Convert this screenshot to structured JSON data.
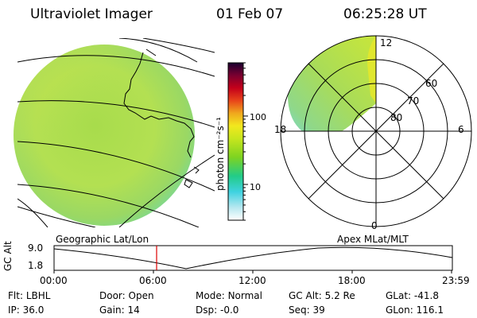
{
  "header": {
    "title": "Ultraviolet Imager",
    "date": "01 Feb 07",
    "time": "06:25:28 UT"
  },
  "colorbar": {
    "unit_label": "photon cm⁻²s⁻¹",
    "ticks": [
      {
        "value": 100,
        "label": "100"
      },
      {
        "value": 10,
        "label": "10"
      }
    ],
    "range": [
      3,
      600
    ],
    "scale": "log",
    "colors": [
      "#ffffff",
      "#b8e8f0",
      "#3fd2e0",
      "#22cc88",
      "#7ed321",
      "#c8e61e",
      "#f2e81e",
      "#f0a71d",
      "#e8441a",
      "#c4001a",
      "#7a0030",
      "#1a0030"
    ]
  },
  "geo_view": {
    "label": "Geographic Lat/Lon",
    "fill_color": "#b5e05a"
  },
  "polar_view": {
    "label": "Apex MLat/MLT",
    "lat_labels": [
      "60",
      "70",
      "80"
    ],
    "mlt_labels": {
      "top": "12",
      "left": "18",
      "right": "6",
      "bottom": "0"
    }
  },
  "timeline": {
    "ylabel": "GC Alt",
    "yticks": [
      "9.0",
      "1.8"
    ],
    "xticks": [
      "00:00",
      "06:00",
      "12:00",
      "18:00",
      "23:59"
    ],
    "current_time_marker": "06:25",
    "marker_color": "#dd0000"
  },
  "status": {
    "row1": [
      {
        "label": "Flt:",
        "value": "LBHL"
      },
      {
        "label": "Door:",
        "value": "Open"
      },
      {
        "label": "Mode:",
        "value": "Normal"
      },
      {
        "label": "GC Alt:",
        "value": "5.2 Re"
      },
      {
        "label": "GLat:",
        "value": "-41.8"
      }
    ],
    "row2": [
      {
        "label": "IP:",
        "value": "36.0"
      },
      {
        "label": "Gain:",
        "value": "14"
      },
      {
        "label": "Dsp:",
        "value": "-0.0"
      },
      {
        "label": "Seq:",
        "value": "39"
      },
      {
        "label": "GLon:",
        "value": "116.1"
      }
    ]
  }
}
